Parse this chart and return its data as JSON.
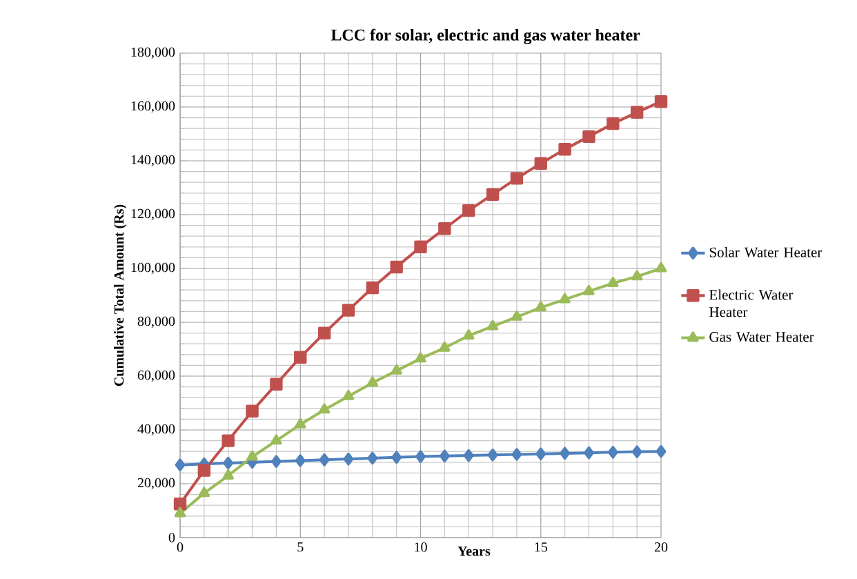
{
  "chart_data": {
    "type": "line",
    "title": "LCC for solar, electric and gas water heater",
    "xlabel": "Years",
    "ylabel": "Cumulative Total Amount (Rs)",
    "x": [
      0,
      1,
      2,
      3,
      4,
      5,
      6,
      7,
      8,
      9,
      10,
      11,
      12,
      13,
      14,
      15,
      16,
      17,
      18,
      19,
      20
    ],
    "series": [
      {
        "name": "Solar Water Heater",
        "color": "#4f81bd",
        "marker": "diamond",
        "values": [
          27000,
          27400,
          27700,
          28000,
          28300,
          28600,
          28900,
          29200,
          29500,
          29800,
          30100,
          30300,
          30500,
          30700,
          30900,
          31100,
          31300,
          31500,
          31700,
          31900,
          32000
        ]
      },
      {
        "name": "Electric Water Heater",
        "color": "#c0504d",
        "marker": "square",
        "values": [
          12500,
          25000,
          36000,
          47000,
          57000,
          67000,
          76000,
          84500,
          92800,
          100500,
          108000,
          114800,
          121500,
          127500,
          133500,
          139000,
          144300,
          149000,
          153800,
          158000,
          162000
        ]
      },
      {
        "name": "Gas Water Heater",
        "color": "#9bbb59",
        "marker": "triangle",
        "values": [
          9000,
          16500,
          23000,
          30000,
          36000,
          42000,
          47500,
          52500,
          57500,
          62000,
          66500,
          70500,
          75000,
          78500,
          82000,
          85500,
          88500,
          91500,
          94500,
          97000,
          100000
        ]
      }
    ],
    "xlim": [
      0,
      20
    ],
    "xticks": [
      0,
      5,
      10,
      15,
      20
    ],
    "ylim": [
      0,
      180000
    ],
    "yticks": [
      {
        "value": 0,
        "label": "0"
      },
      {
        "value": 20000,
        "label": "20,000"
      },
      {
        "value": 40000,
        "label": "40,000"
      },
      {
        "value": 60000,
        "label": "60,000"
      },
      {
        "value": 80000,
        "label": "80,000"
      },
      {
        "value": 100000,
        "label": "100,000"
      },
      {
        "value": 120000,
        "label": "120,000"
      },
      {
        "value": 140000,
        "label": "140,000"
      },
      {
        "value": 160000,
        "label": "160,000"
      },
      {
        "value": 180000,
        "label": "180,000"
      }
    ],
    "grid": true,
    "legend": "right",
    "line_style": "solid"
  }
}
